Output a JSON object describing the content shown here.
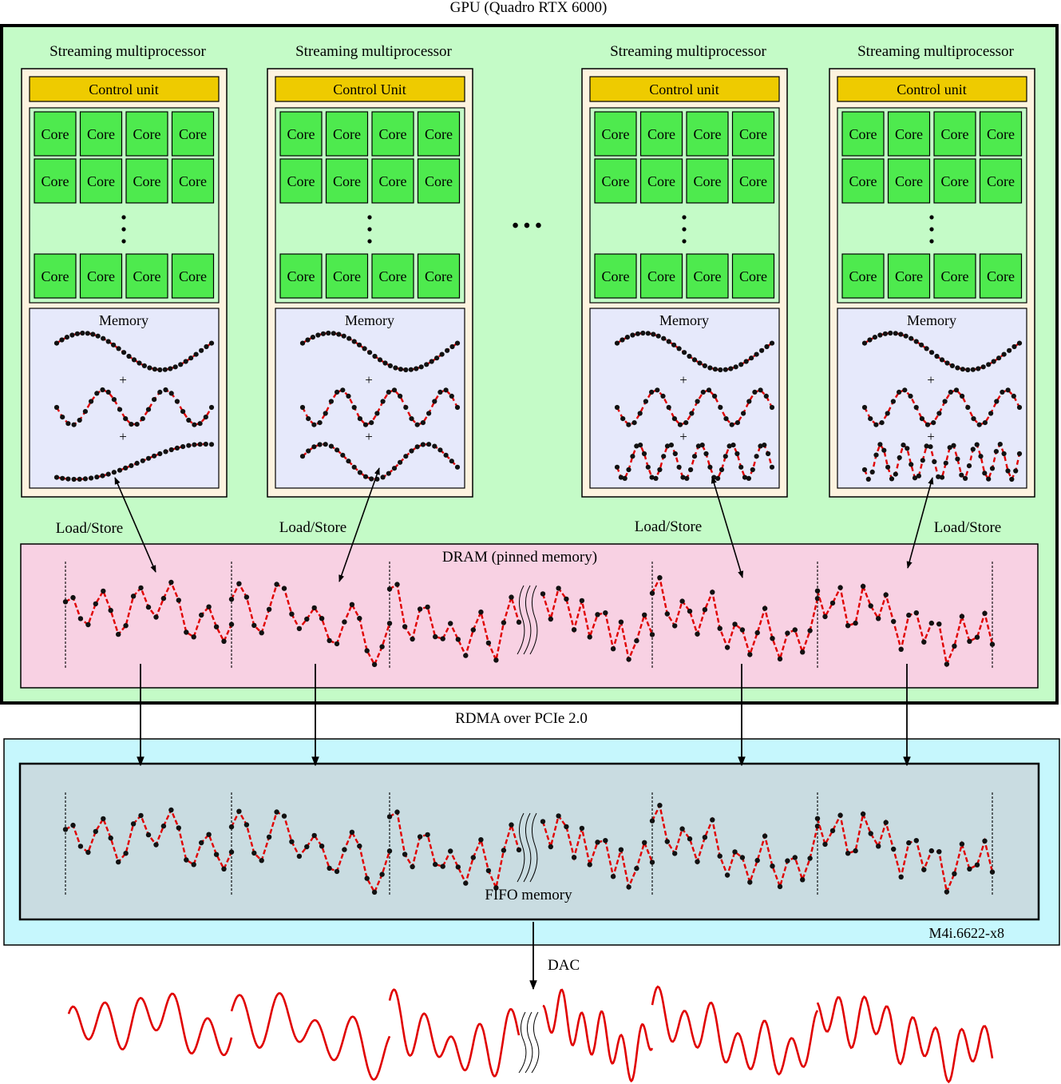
{
  "gpu": {
    "title": "GPU (Quadro RTX 6000)",
    "ellipsis": "• • •",
    "colors": {
      "background": "#c4fbc7",
      "border": "#000000"
    }
  },
  "sm_blocks": [
    {
      "title": "Streaming multiprocessor",
      "control_label": "Control unit",
      "core_label": "Core",
      "memory_label": "Memory",
      "plus": "+"
    },
    {
      "title": "Streaming multiprocessor",
      "control_label": "Control Unit",
      "core_label": "Core",
      "memory_label": "Memory",
      "plus": "+"
    },
    {
      "title": "Streaming multiprocessor",
      "control_label": "Control unit",
      "core_label": "Core",
      "memory_label": "Memory",
      "plus": "+"
    },
    {
      "title": "Streaming multiprocessor",
      "control_label": "Control unit",
      "core_label": "Core",
      "memory_label": "Memory",
      "plus": "+"
    }
  ],
  "sm_colors": {
    "frame": "#fdf3df",
    "control": "#eecb00",
    "core_area": "#c4fbc7",
    "core": "#4eea4e",
    "memory": "#e6e9fb"
  },
  "load_store_label": "Load/Store",
  "dram": {
    "label": "DRAM (pinned memory)",
    "color": "#f8d1e3"
  },
  "link": {
    "label": "RDMA over PCIe 2.0"
  },
  "card": {
    "name": "M4i.6622-x8",
    "fifo_label": "FIFO memory",
    "color": "#c6f7fd",
    "fifo_color": "#c9dce1"
  },
  "dac_label": "DAC",
  "signal_color": "#e00000"
}
